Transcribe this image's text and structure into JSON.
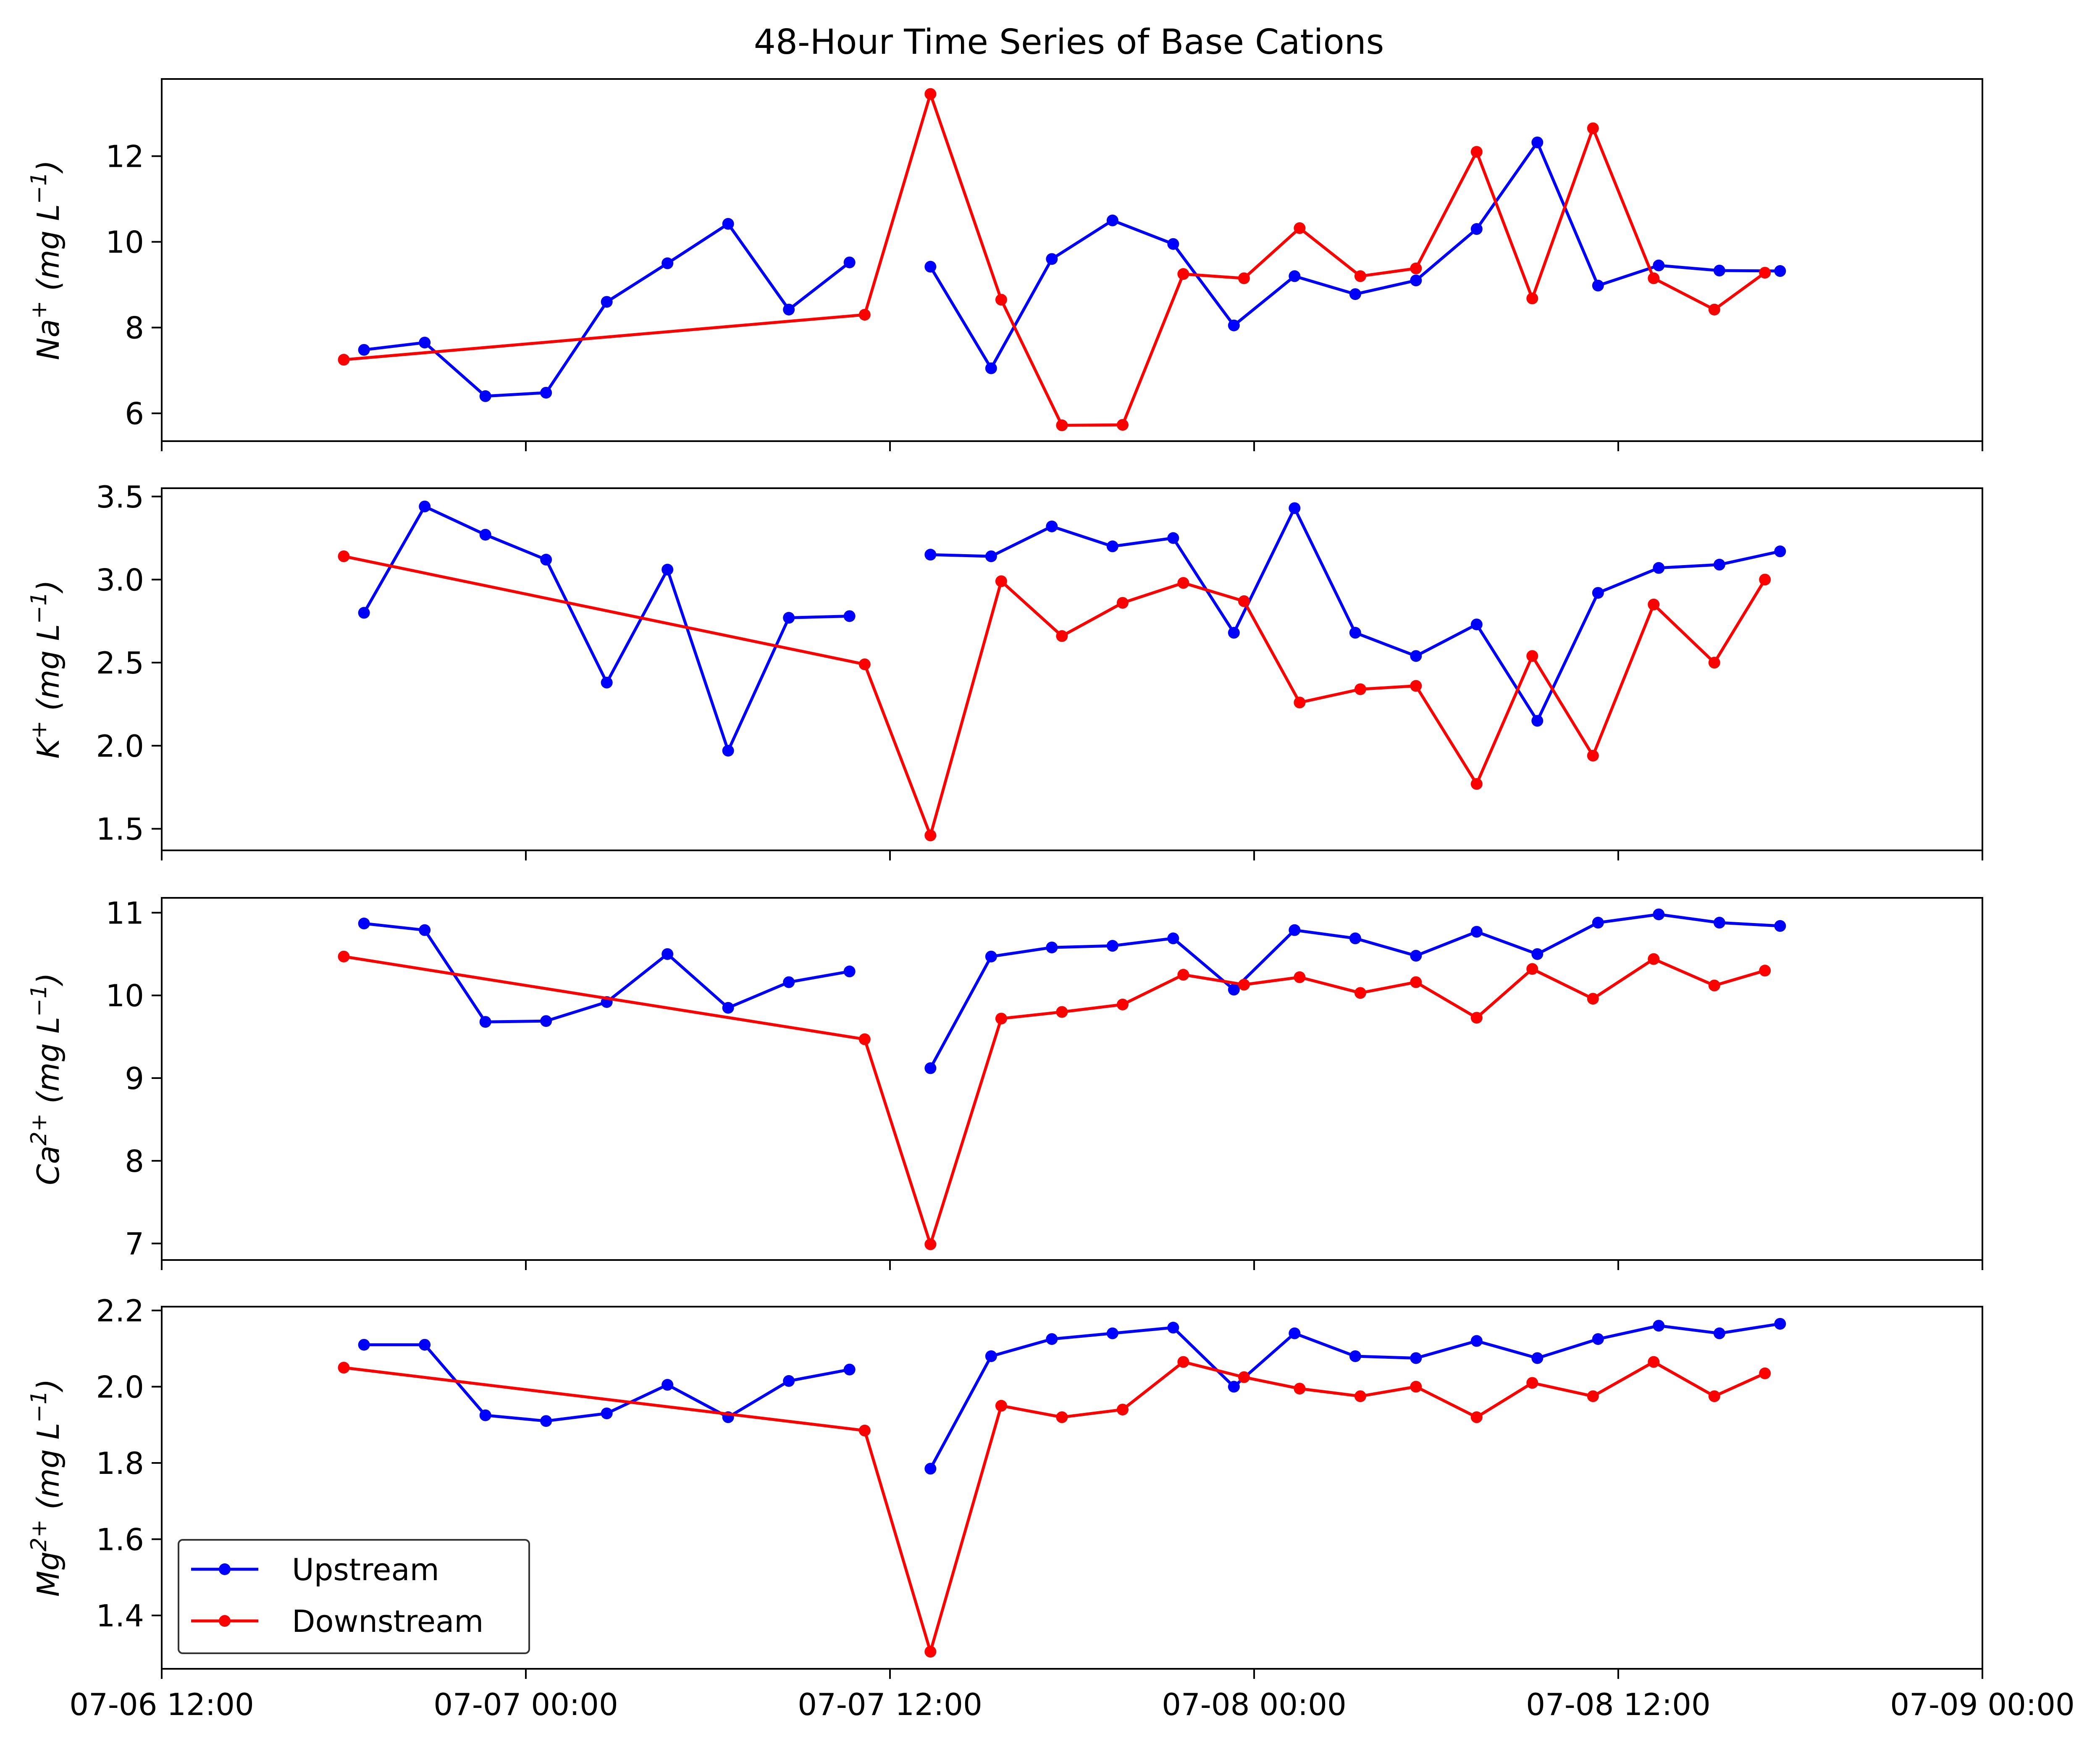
{
  "chart_data": {
    "title": "48-Hour Time Series of Base Cations",
    "type": "line",
    "x_unit": "time",
    "x_ticks": [
      "07-06 12:00",
      "07-07 00:00",
      "07-07 12:00",
      "07-08 00:00",
      "07-08 12:00",
      "07-09 00:00"
    ],
    "xlim": [
      "2024-07-06 12:00",
      "2024-07-09 00:00"
    ],
    "legend": {
      "placement": "lower-left",
      "entries": [
        "Upstream",
        "Downstream"
      ]
    },
    "colors": {
      "Upstream": "#0000ff",
      "Downstream": "#ff0000"
    },
    "panels": [
      {
        "ylabel_base": "Na",
        "ylabel_sup": "+",
        "ylabel_unit": "(mg L",
        "ylabel_unit_sup": "−1",
        "ylabel_close": ")",
        "ylim": [
          5.35,
          13.8
        ],
        "y_ticks": [
          "6",
          "8",
          "10",
          "12"
        ],
        "y_tick_values": [
          6,
          8,
          10,
          12
        ],
        "series": [
          {
            "name": "Upstream",
            "segments": [
              [
                [
                  "2024-07-06 18:40",
                  7.48
                ],
                [
                  "2024-07-06 20:40",
                  7.65
                ],
                [
                  "2024-07-06 22:40",
                  6.4
                ],
                [
                  "2024-07-07 00:40",
                  6.48
                ],
                [
                  "2024-07-07 02:40",
                  8.6
                ],
                [
                  "2024-07-07 04:40",
                  9.5
                ],
                [
                  "2024-07-07 06:40",
                  10.42
                ],
                [
                  "2024-07-07 08:40",
                  8.42
                ],
                [
                  "2024-07-07 10:40",
                  9.52
                ]
              ],
              [
                [
                  "2024-07-07 13:20",
                  9.42
                ],
                [
                  "2024-07-07 15:20",
                  7.05
                ],
                [
                  "2024-07-07 17:20",
                  9.6
                ],
                [
                  "2024-07-07 19:20",
                  10.5
                ],
                [
                  "2024-07-07 21:20",
                  9.95
                ],
                [
                  "2024-07-07 23:20",
                  8.05
                ],
                [
                  "2024-07-08 01:20",
                  9.2
                ],
                [
                  "2024-07-08 03:20",
                  8.78
                ],
                [
                  "2024-07-08 05:20",
                  9.1
                ],
                [
                  "2024-07-08 07:20",
                  10.3
                ],
                [
                  "2024-07-08 09:20",
                  12.32
                ],
                [
                  "2024-07-08 11:20",
                  8.98
                ],
                [
                  "2024-07-08 13:20",
                  9.45
                ],
                [
                  "2024-07-08 15:20",
                  9.33
                ],
                [
                  "2024-07-08 17:20",
                  9.32
                ]
              ]
            ]
          },
          {
            "name": "Downstream",
            "segments": [
              [
                [
                  "2024-07-06 18:00",
                  7.25
                ],
                [
                  "2024-07-07 11:10",
                  8.3
                ],
                [
                  "2024-07-07 13:20",
                  13.45
                ],
                [
                  "2024-07-07 15:40",
                  8.65
                ],
                [
                  "2024-07-07 17:40",
                  5.72
                ],
                [
                  "2024-07-07 19:40",
                  5.73
                ],
                [
                  "2024-07-07 21:40",
                  9.25
                ],
                [
                  "2024-07-07 23:40",
                  9.15
                ],
                [
                  "2024-07-08 01:30",
                  10.32
                ],
                [
                  "2024-07-08 03:30",
                  9.2
                ],
                [
                  "2024-07-08 05:20",
                  9.38
                ],
                [
                  "2024-07-08 07:20",
                  12.1
                ],
                [
                  "2024-07-08 09:10",
                  8.68
                ],
                [
                  "2024-07-08 11:10",
                  12.65
                ],
                [
                  "2024-07-08 13:10",
                  9.15
                ],
                [
                  "2024-07-08 15:10",
                  8.42
                ],
                [
                  "2024-07-08 16:50",
                  9.28
                ]
              ]
            ]
          }
        ]
      },
      {
        "ylabel_base": "K",
        "ylabel_sup": "+",
        "ylabel_unit": "(mg L",
        "ylabel_unit_sup": "−1",
        "ylabel_close": ")",
        "ylim": [
          1.37,
          3.55
        ],
        "y_ticks": [
          "1.5",
          "2.0",
          "2.5",
          "3.0",
          "3.5"
        ],
        "y_tick_values": [
          1.5,
          2.0,
          2.5,
          3.0,
          3.5
        ],
        "series": [
          {
            "name": "Upstream",
            "segments": [
              [
                [
                  "2024-07-06 18:40",
                  2.8
                ],
                [
                  "2024-07-06 20:40",
                  3.44
                ],
                [
                  "2024-07-06 22:40",
                  3.27
                ],
                [
                  "2024-07-07 00:40",
                  3.12
                ],
                [
                  "2024-07-07 02:40",
                  2.38
                ],
                [
                  "2024-07-07 04:40",
                  3.06
                ],
                [
                  "2024-07-07 06:40",
                  1.97
                ],
                [
                  "2024-07-07 08:40",
                  2.77
                ],
                [
                  "2024-07-07 10:40",
                  2.78
                ]
              ],
              [
                [
                  "2024-07-07 13:20",
                  3.15
                ],
                [
                  "2024-07-07 15:20",
                  3.14
                ],
                [
                  "2024-07-07 17:20",
                  3.32
                ],
                [
                  "2024-07-07 19:20",
                  3.2
                ],
                [
                  "2024-07-07 21:20",
                  3.25
                ],
                [
                  "2024-07-07 23:20",
                  2.68
                ],
                [
                  "2024-07-08 01:20",
                  3.43
                ],
                [
                  "2024-07-08 03:20",
                  2.68
                ],
                [
                  "2024-07-08 05:20",
                  2.54
                ],
                [
                  "2024-07-08 07:20",
                  2.73
                ],
                [
                  "2024-07-08 09:20",
                  2.15
                ],
                [
                  "2024-07-08 11:20",
                  2.92
                ],
                [
                  "2024-07-08 13:20",
                  3.07
                ],
                [
                  "2024-07-08 15:20",
                  3.09
                ],
                [
                  "2024-07-08 17:20",
                  3.17
                ]
              ]
            ]
          },
          {
            "name": "Downstream",
            "segments": [
              [
                [
                  "2024-07-06 18:00",
                  3.14
                ],
                [
                  "2024-07-07 11:10",
                  2.49
                ],
                [
                  "2024-07-07 13:20",
                  1.46
                ],
                [
                  "2024-07-07 15:40",
                  2.99
                ],
                [
                  "2024-07-07 17:40",
                  2.66
                ],
                [
                  "2024-07-07 19:40",
                  2.86
                ],
                [
                  "2024-07-07 21:40",
                  2.98
                ],
                [
                  "2024-07-07 23:40",
                  2.87
                ],
                [
                  "2024-07-08 01:30",
                  2.26
                ],
                [
                  "2024-07-08 03:30",
                  2.34
                ],
                [
                  "2024-07-08 05:20",
                  2.36
                ],
                [
                  "2024-07-08 07:20",
                  1.77
                ],
                [
                  "2024-07-08 09:10",
                  2.54
                ],
                [
                  "2024-07-08 11:10",
                  1.94
                ],
                [
                  "2024-07-08 13:10",
                  2.85
                ],
                [
                  "2024-07-08 15:10",
                  2.5
                ],
                [
                  "2024-07-08 16:50",
                  3.0
                ]
              ]
            ]
          }
        ]
      },
      {
        "ylabel_base": "Ca",
        "ylabel_sup": "2+",
        "ylabel_unit": "(mg L",
        "ylabel_unit_sup": "−1",
        "ylabel_close": ")",
        "ylim": [
          6.8,
          11.18
        ],
        "y_ticks": [
          "7",
          "8",
          "9",
          "10",
          "11"
        ],
        "y_tick_values": [
          7,
          8,
          9,
          10,
          11
        ],
        "series": [
          {
            "name": "Upstream",
            "segments": [
              [
                [
                  "2024-07-06 18:40",
                  10.87
                ],
                [
                  "2024-07-06 20:40",
                  10.79
                ],
                [
                  "2024-07-06 22:40",
                  9.68
                ],
                [
                  "2024-07-07 00:40",
                  9.69
                ],
                [
                  "2024-07-07 02:40",
                  9.92
                ],
                [
                  "2024-07-07 04:40",
                  10.5
                ],
                [
                  "2024-07-07 06:40",
                  9.85
                ],
                [
                  "2024-07-07 08:40",
                  10.16
                ],
                [
                  "2024-07-07 10:40",
                  10.29
                ]
              ],
              [
                [
                  "2024-07-07 13:20",
                  9.12
                ],
                [
                  "2024-07-07 15:20",
                  10.47
                ],
                [
                  "2024-07-07 17:20",
                  10.58
                ],
                [
                  "2024-07-07 19:20",
                  10.6
                ],
                [
                  "2024-07-07 21:20",
                  10.69
                ],
                [
                  "2024-07-07 23:20",
                  10.07
                ],
                [
                  "2024-07-08 01:20",
                  10.79
                ],
                [
                  "2024-07-08 03:20",
                  10.69
                ],
                [
                  "2024-07-08 05:20",
                  10.48
                ],
                [
                  "2024-07-08 07:20",
                  10.77
                ],
                [
                  "2024-07-08 09:20",
                  10.5
                ],
                [
                  "2024-07-08 11:20",
                  10.88
                ],
                [
                  "2024-07-08 13:20",
                  10.98
                ],
                [
                  "2024-07-08 15:20",
                  10.88
                ],
                [
                  "2024-07-08 17:20",
                  10.84
                ]
              ]
            ]
          },
          {
            "name": "Downstream",
            "segments": [
              [
                [
                  "2024-07-06 18:00",
                  10.47
                ],
                [
                  "2024-07-07 11:10",
                  9.47
                ],
                [
                  "2024-07-07 13:20",
                  6.99
                ],
                [
                  "2024-07-07 15:40",
                  9.72
                ],
                [
                  "2024-07-07 17:40",
                  9.8
                ],
                [
                  "2024-07-07 19:40",
                  9.89
                ],
                [
                  "2024-07-07 21:40",
                  10.25
                ],
                [
                  "2024-07-07 23:40",
                  10.13
                ],
                [
                  "2024-07-08 01:30",
                  10.22
                ],
                [
                  "2024-07-08 03:30",
                  10.03
                ],
                [
                  "2024-07-08 05:20",
                  10.16
                ],
                [
                  "2024-07-08 07:20",
                  9.73
                ],
                [
                  "2024-07-08 09:10",
                  10.32
                ],
                [
                  "2024-07-08 11:10",
                  9.96
                ],
                [
                  "2024-07-08 13:10",
                  10.44
                ],
                [
                  "2024-07-08 15:10",
                  10.12
                ],
                [
                  "2024-07-08 16:50",
                  10.3
                ]
              ]
            ]
          }
        ]
      },
      {
        "ylabel_base": "Mg",
        "ylabel_sup": "2+",
        "ylabel_unit": "(mg L",
        "ylabel_unit_sup": "−1",
        "ylabel_close": ")",
        "ylim": [
          1.26,
          2.21
        ],
        "y_ticks": [
          "1.4",
          "1.6",
          "1.8",
          "2.0",
          "2.2"
        ],
        "y_tick_values": [
          1.4,
          1.6,
          1.8,
          2.0,
          2.2
        ],
        "series": [
          {
            "name": "Upstream",
            "segments": [
              [
                [
                  "2024-07-06 18:40",
                  2.11
                ],
                [
                  "2024-07-06 20:40",
                  2.11
                ],
                [
                  "2024-07-06 22:40",
                  1.925
                ],
                [
                  "2024-07-07 00:40",
                  1.91
                ],
                [
                  "2024-07-07 02:40",
                  1.93
                ],
                [
                  "2024-07-07 04:40",
                  2.005
                ],
                [
                  "2024-07-07 06:40",
                  1.92
                ],
                [
                  "2024-07-07 08:40",
                  2.015
                ],
                [
                  "2024-07-07 10:40",
                  2.045
                ]
              ],
              [
                [
                  "2024-07-07 13:20",
                  1.785
                ],
                [
                  "2024-07-07 15:20",
                  2.08
                ],
                [
                  "2024-07-07 17:20",
                  2.125
                ],
                [
                  "2024-07-07 19:20",
                  2.14
                ],
                [
                  "2024-07-07 21:20",
                  2.155
                ],
                [
                  "2024-07-07 23:20",
                  2.0
                ],
                [
                  "2024-07-08 01:20",
                  2.14
                ],
                [
                  "2024-07-08 03:20",
                  2.08
                ],
                [
                  "2024-07-08 05:20",
                  2.075
                ],
                [
                  "2024-07-08 07:20",
                  2.12
                ],
                [
                  "2024-07-08 09:20",
                  2.075
                ],
                [
                  "2024-07-08 11:20",
                  2.125
                ],
                [
                  "2024-07-08 13:20",
                  2.16
                ],
                [
                  "2024-07-08 15:20",
                  2.14
                ],
                [
                  "2024-07-08 17:20",
                  2.165
                ]
              ]
            ]
          },
          {
            "name": "Downstream",
            "segments": [
              [
                [
                  "2024-07-06 18:00",
                  2.05
                ],
                [
                  "2024-07-07 11:10",
                  1.885
                ],
                [
                  "2024-07-07 13:20",
                  1.305
                ],
                [
                  "2024-07-07 15:40",
                  1.95
                ],
                [
                  "2024-07-07 17:40",
                  1.92
                ],
                [
                  "2024-07-07 19:40",
                  1.94
                ],
                [
                  "2024-07-07 21:40",
                  2.065
                ],
                [
                  "2024-07-07 23:40",
                  2.025
                ],
                [
                  "2024-07-08 01:30",
                  1.995
                ],
                [
                  "2024-07-08 03:30",
                  1.975
                ],
                [
                  "2024-07-08 05:20",
                  2.0
                ],
                [
                  "2024-07-08 07:20",
                  1.92
                ],
                [
                  "2024-07-08 09:10",
                  2.01
                ],
                [
                  "2024-07-08 11:10",
                  1.975
                ],
                [
                  "2024-07-08 13:10",
                  2.065
                ],
                [
                  "2024-07-08 15:10",
                  1.975
                ],
                [
                  "2024-07-08 16:50",
                  2.035
                ]
              ]
            ]
          }
        ]
      }
    ]
  }
}
